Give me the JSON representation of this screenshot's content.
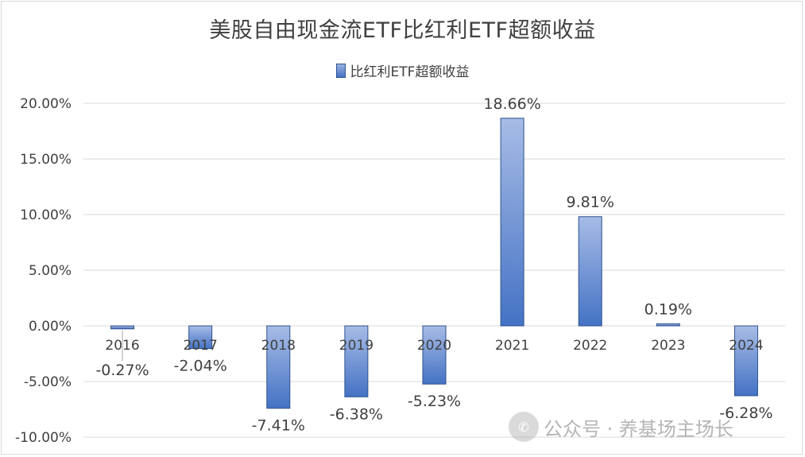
{
  "chart_data": {
    "type": "bar",
    "title": "美股自由现金流ETF比红利ETF超额收益",
    "legend": "比红利ETF超额收益",
    "categories": [
      "2016",
      "2017",
      "2018",
      "2019",
      "2020",
      "2021",
      "2022",
      "2023",
      "2024"
    ],
    "series": [
      {
        "name": "比红利ETF超额收益",
        "values": [
          -0.27,
          -2.04,
          -7.41,
          -6.38,
          -5.23,
          18.66,
          9.81,
          0.19,
          -6.28
        ]
      }
    ],
    "data_labels": [
      "-0.27%",
      "-2.04%",
      "-7.41%",
      "-6.38%",
      "-5.23%",
      "18.66%",
      "9.81%",
      "0.19%",
      "-6.28%"
    ],
    "y_ticks": [
      "20.00%",
      "15.00%",
      "10.00%",
      "5.00%",
      "0.00%",
      "-5.00%",
      "-10.00%"
    ],
    "ylim": [
      -10,
      20
    ],
    "grid": true,
    "legend_position": "top",
    "colors": {
      "bar_top": "#9bb1e0",
      "bar_bottom": "#4472c4",
      "bar_border": "#2f528f",
      "grid": "#d9d9d9"
    }
  },
  "watermark": {
    "text": "公众号 · 养基场主场长",
    "icon": "wechat-icon"
  }
}
